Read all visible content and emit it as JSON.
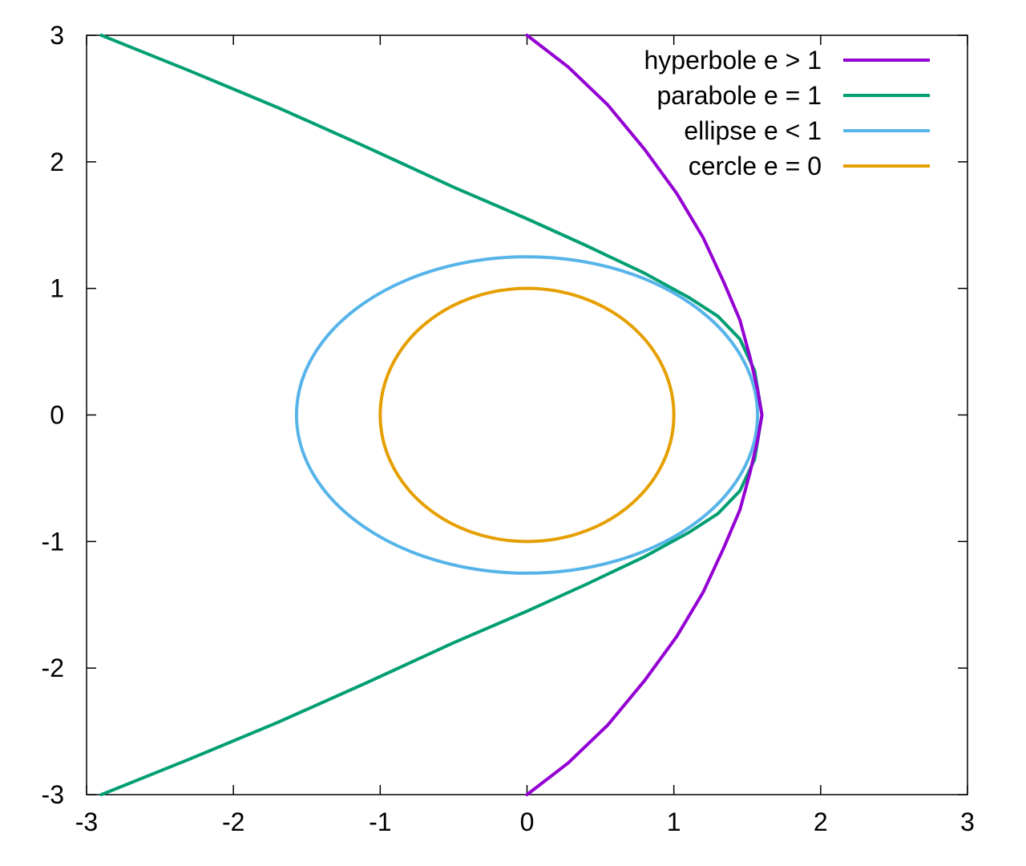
{
  "chart_data": {
    "type": "line",
    "title": "",
    "xlabel": "",
    "ylabel": "",
    "xlim": [
      -3,
      3
    ],
    "ylim": [
      -3,
      3
    ],
    "grid": false,
    "legend_position": "top-right",
    "x_ticks": [
      "-3",
      "-2",
      "-1",
      "0",
      "1",
      "2",
      "3"
    ],
    "y_ticks": [
      "3",
      "2",
      "1",
      "0",
      "-1",
      "-2",
      "-3"
    ],
    "series": [
      {
        "name": "hyperbole e > 1",
        "color": "#9400d3",
        "x": [
          0.0,
          0.28,
          0.55,
          0.8,
          1.02,
          1.2,
          1.34,
          1.45,
          1.52,
          1.57,
          1.6,
          1.57,
          1.52,
          1.45,
          1.34,
          1.2,
          1.02,
          0.8,
          0.55,
          0.28,
          0.0
        ],
        "y": [
          3.0,
          2.75,
          2.45,
          2.1,
          1.75,
          1.4,
          1.05,
          0.75,
          0.45,
          0.2,
          0.0,
          -0.2,
          -0.45,
          -0.75,
          -1.05,
          -1.4,
          -1.75,
          -2.1,
          -2.45,
          -2.75,
          -3.0
        ]
      },
      {
        "name": "parabole e = 1",
        "color": "#009e73",
        "x": [
          -2.9,
          -2.3,
          -1.7,
          -1.1,
          -0.5,
          0.0,
          0.4,
          0.8,
          1.1,
          1.3,
          1.45,
          1.55,
          1.6,
          1.55,
          1.45,
          1.3,
          1.1,
          0.8,
          0.4,
          0.0,
          -0.5,
          -1.1,
          -1.7,
          -2.3,
          -2.9
        ],
        "y": [
          3.0,
          2.72,
          2.43,
          2.12,
          1.8,
          1.55,
          1.34,
          1.12,
          0.93,
          0.78,
          0.6,
          0.35,
          0.0,
          -0.35,
          -0.6,
          -0.78,
          -0.93,
          -1.12,
          -1.34,
          -1.55,
          -1.8,
          -2.12,
          -2.43,
          -2.72,
          -3.0
        ]
      },
      {
        "name": "ellipse e < 1",
        "color": "#56b4e9",
        "center": [
          0,
          0
        ],
        "rx": 1.57,
        "ry": 1.25
      },
      {
        "name": "cercle e = 0",
        "color": "#e69f00",
        "center": [
          0,
          0
        ],
        "rx": 1.0,
        "ry": 1.0
      }
    ]
  }
}
